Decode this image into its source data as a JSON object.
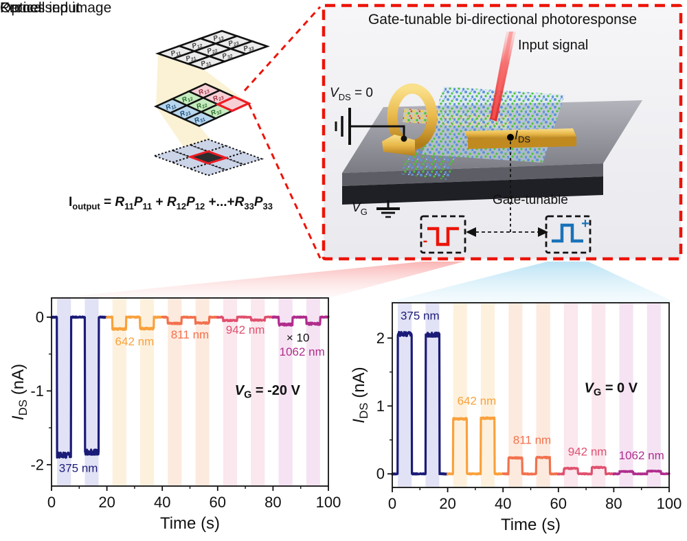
{
  "schematic": {
    "labels": {
      "optical": "Optical input",
      "kernel": "Kernel",
      "processed": "Processed image"
    },
    "optical_grid": {
      "letter": "P",
      "cell_fill": "#ebebeb",
      "text_color": "#444444"
    },
    "kernel_grid": {
      "letter": "R",
      "col_fills": [
        "#b8d6ee",
        "#c6ecc0",
        "#f7d0d6"
      ],
      "text_colors": [
        "#1e4e79",
        "#2e6e2e",
        "#a03040"
      ],
      "highlight_cell": "33",
      "highlight_color": "#ec1c24"
    },
    "processed_grid": {
      "cell_fill": "#ccd4e8",
      "center_fill": "#2d2d2d",
      "center_border": "#ec1c24"
    },
    "equation_tokens": [
      {
        "t": "I",
        "sub": "output"
      },
      {
        "t": " = "
      },
      {
        "t": "R",
        "sub": "11",
        "italic": true
      },
      {
        "t": "P",
        "sub": "11",
        "italic": true
      },
      {
        "t": " + "
      },
      {
        "t": "R",
        "sub": "12",
        "italic": true
      },
      {
        "t": "P",
        "sub": "12",
        "italic": true
      },
      {
        "t": " +...+"
      },
      {
        "t": "R",
        "sub": "33",
        "italic": true
      },
      {
        "t": "P",
        "sub": "33",
        "italic": true
      }
    ]
  },
  "device_panel": {
    "title": "Gate-tunable bi-directional photoresponse",
    "input_signal_label": "Input signal",
    "vds_label": {
      "base": "V",
      "sub": "DS",
      "rest": " = 0"
    },
    "vg_label": {
      "base": "V",
      "sub": "G"
    },
    "ids_label": {
      "base": "I",
      "sub": "DS"
    },
    "gate_tunable_label": "Gate-tunable",
    "negative_pulse": {
      "sign": "-",
      "color": "#ec1408"
    },
    "positive_pulse": {
      "sign": "+",
      "color": "#1a72b8"
    },
    "border_color": "#ec1408"
  },
  "chart_data": [
    {
      "type": "line",
      "side": "left",
      "xlabel": "Time (s)",
      "ylabel_base": "I",
      "ylabel_sub": "DS",
      "ylabel_unit": " (nA)",
      "xlim": [
        0,
        100
      ],
      "ylim": [
        -2.29,
        0.26
      ],
      "xticks": [
        0,
        20,
        40,
        60,
        80,
        100
      ],
      "xticks_minor": [
        10,
        30,
        50,
        70,
        90
      ],
      "yticks": [
        0,
        -1,
        -2
      ],
      "yticks_minor": [
        -0.5,
        -1.5
      ],
      "baseline": 0,
      "gate_label": {
        "base": "V",
        "sub": "G",
        "rest": " = -20 V",
        "pos": [
          78,
          -1.05
        ]
      },
      "scale_label": {
        "text": "× 10",
        "applies_to": "1062 nm",
        "pos": [
          89,
          -0.33
        ]
      },
      "segments": [
        {
          "wavelength": "375 nm",
          "color": "#1b1b78",
          "band_color": "#e2e2f6",
          "t_range": [
            0,
            20
          ],
          "pulses": [
            {
              "on": 2,
              "off": 7,
              "amplitude": -1.87
            },
            {
              "on": 12,
              "off": 17,
              "amplitude": -1.83
            }
          ],
          "label_pos": [
            9.7,
            -2.1
          ],
          "noise": 0.035
        },
        {
          "wavelength": "642 nm",
          "color": "#f9a13c",
          "band_color": "#fdf1dd",
          "t_range": [
            20,
            40
          ],
          "pulses": [
            {
              "on": 22,
              "off": 27,
              "amplitude": -0.16
            },
            {
              "on": 32,
              "off": 37,
              "amplitude": -0.155
            }
          ],
          "label_pos": [
            30,
            -0.38
          ],
          "noise": 0.012
        },
        {
          "wavelength": "811 nm",
          "color": "#f2714d",
          "band_color": "#fdeade",
          "t_range": [
            40,
            60
          ],
          "pulses": [
            {
              "on": 42,
              "off": 47,
              "amplitude": -0.085
            },
            {
              "on": 52,
              "off": 57,
              "amplitude": -0.08
            }
          ],
          "label_pos": [
            50,
            -0.29
          ],
          "noise": 0.01
        },
        {
          "wavelength": "942 nm",
          "color": "#e0506e",
          "band_color": "#fbe7ee",
          "t_range": [
            60,
            80
          ],
          "pulses": [
            {
              "on": 62,
              "off": 67,
              "amplitude": -0.045
            },
            {
              "on": 72,
              "off": 77,
              "amplitude": -0.04
            }
          ],
          "label_pos": [
            70,
            -0.225
          ],
          "noise": 0.008
        },
        {
          "wavelength": "1062 nm",
          "color": "#b02c8c",
          "band_color": "#f5e3f3",
          "t_range": [
            80,
            100
          ],
          "pulses": [
            {
              "on": 82,
              "off": 87,
              "amplitude": -0.1
            },
            {
              "on": 92,
              "off": 97,
              "amplitude": -0.09
            }
          ],
          "label_pos": [
            90.5,
            -0.52
          ],
          "noise": 0.014
        }
      ]
    },
    {
      "type": "line",
      "side": "right",
      "xlabel": "Time (s)",
      "ylabel_base": "I",
      "ylabel_sub": "DS",
      "ylabel_unit": " (nA)",
      "xlim": [
        0,
        100
      ],
      "ylim": [
        -0.2,
        2.52
      ],
      "xticks": [
        0,
        20,
        40,
        60,
        80,
        100
      ],
      "xticks_minor": [
        10,
        30,
        50,
        70,
        90
      ],
      "yticks": [
        0,
        1,
        2
      ],
      "yticks_minor": [
        0.5,
        1.5
      ],
      "baseline": 0,
      "gate_label": {
        "base": "V",
        "sub": "G",
        "rest": " = 0 V",
        "pos": [
          79,
          1.2
        ]
      },
      "segments": [
        {
          "wavelength": "375 nm",
          "color": "#1b1b78",
          "band_color": "#e2e2f6",
          "t_range": [
            0,
            20
          ],
          "pulses": [
            {
              "on": 2,
              "off": 7,
              "amplitude": 2.06
            },
            {
              "on": 12,
              "off": 17,
              "amplitude": 2.05
            }
          ],
          "label_pos": [
            10,
            2.27
          ],
          "noise": 0.03
        },
        {
          "wavelength": "642 nm",
          "color": "#f9a13c",
          "band_color": "#fdf1dd",
          "t_range": [
            20,
            40
          ],
          "pulses": [
            {
              "on": 22,
              "off": 27,
              "amplitude": 0.81
            },
            {
              "on": 32,
              "off": 37,
              "amplitude": 0.82
            }
          ],
          "label_pos": [
            30.5,
            1.02
          ],
          "noise": 0.012
        },
        {
          "wavelength": "811 nm",
          "color": "#f2714d",
          "band_color": "#fdeade",
          "t_range": [
            40,
            60
          ],
          "pulses": [
            {
              "on": 42,
              "off": 47,
              "amplitude": 0.235
            },
            {
              "on": 52,
              "off": 57,
              "amplitude": 0.24
            }
          ],
          "label_pos": [
            50.5,
            0.44
          ],
          "noise": 0.01
        },
        {
          "wavelength": "942 nm",
          "color": "#e0506e",
          "band_color": "#fbe7ee",
          "t_range": [
            60,
            80
          ],
          "pulses": [
            {
              "on": 62,
              "off": 67,
              "amplitude": 0.08
            },
            {
              "on": 72,
              "off": 77,
              "amplitude": 0.095
            }
          ],
          "label_pos": [
            70.5,
            0.27
          ],
          "noise": 0.008
        },
        {
          "wavelength": "1062 nm",
          "color": "#b02c8c",
          "band_color": "#f5e3f3",
          "t_range": [
            80,
            100
          ],
          "pulses": [
            {
              "on": 82,
              "off": 87,
              "amplitude": 0.035
            },
            {
              "on": 92,
              "off": 97,
              "amplitude": 0.04
            }
          ],
          "label_pos": [
            90,
            0.215
          ],
          "noise": 0.006
        }
      ]
    }
  ]
}
